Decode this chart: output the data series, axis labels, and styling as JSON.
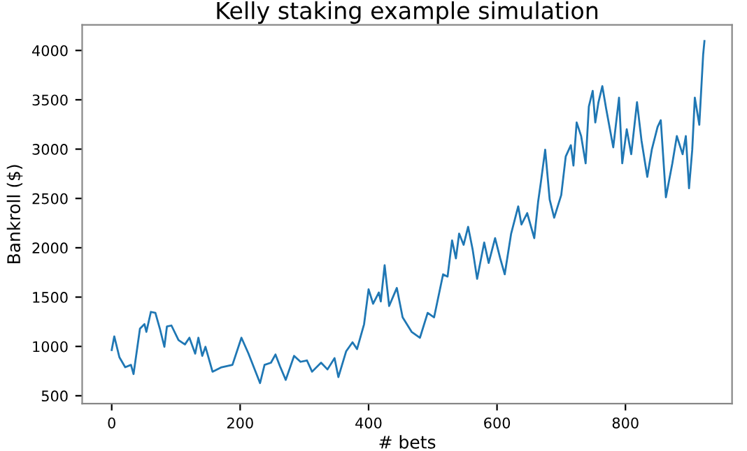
{
  "chart_data": {
    "type": "line",
    "title": "Kelly staking example simulation",
    "xlabel": "# bets",
    "ylabel": "Bankroll ($)",
    "xlim": [
      -46,
      966
    ],
    "ylim": [
      420,
      4260
    ],
    "xticks": [
      0,
      200,
      400,
      600,
      800
    ],
    "yticks": [
      500,
      1000,
      1500,
      2000,
      2500,
      3000,
      3500,
      4000
    ],
    "grid": false,
    "legend": false,
    "series": [
      {
        "color": "#1f77b4",
        "x": [
          0,
          4,
          12,
          21,
          30,
          34,
          44,
          51,
          54,
          61,
          68,
          75,
          82,
          86,
          93,
          104,
          114,
          121,
          130,
          135,
          141,
          146,
          157,
          171,
          188,
          202,
          213,
          231,
          238,
          248,
          255,
          262,
          271,
          284,
          294,
          304,
          312,
          326,
          336,
          347,
          353,
          365,
          375,
          382,
          393,
          400,
          407,
          416,
          419,
          425,
          432,
          444,
          453,
          467,
          480,
          492,
          502,
          516,
          523,
          530,
          536,
          541,
          548,
          555,
          562,
          569,
          580,
          587,
          597,
          605,
          612,
          622,
          633,
          638,
          647,
          658,
          664,
          668,
          675,
          682,
          689,
          700,
          707,
          715,
          719,
          724,
          731,
          738,
          743,
          749,
          753,
          758,
          764,
          770,
          781,
          790,
          795,
          802,
          809,
          818,
          825,
          834,
          841,
          850,
          855,
          863,
          873,
          880,
          889,
          894,
          899,
          904,
          908,
          915,
          921,
          923
        ],
        "values": [
          964,
          1102,
          890,
          789,
          813,
          720,
          1180,
          1226,
          1148,
          1350,
          1340,
          1180,
          996,
          1203,
          1212,
          1065,
          1020,
          1088,
          927,
          1088,
          904,
          996,
          744,
          789,
          813,
          1088,
          927,
          628,
          813,
          835,
          918,
          800,
          661,
          904,
          844,
          858,
          744,
          835,
          767,
          881,
          689,
          950,
          1042,
          973,
          1226,
          1579,
          1433,
          1547,
          1456,
          1823,
          1410,
          1593,
          1295,
          1148,
          1088,
          1340,
          1295,
          1731,
          1708,
          2075,
          1892,
          2144,
          2030,
          2213,
          1984,
          1685,
          2053,
          1846,
          2098,
          1892,
          1731,
          2144,
          2420,
          2236,
          2351,
          2098,
          2466,
          2650,
          2994,
          2489,
          2305,
          2535,
          2925,
          3040,
          2833,
          3270,
          3132,
          2856,
          3431,
          3591,
          3270,
          3476,
          3638,
          3408,
          3018,
          3522,
          2856,
          3201,
          2948,
          3476,
          3086,
          2719,
          2994,
          3224,
          3293,
          2512,
          2856,
          3132,
          2948,
          3132,
          2604,
          2994,
          3522,
          3247,
          3959,
          4096
        ]
      }
    ]
  }
}
